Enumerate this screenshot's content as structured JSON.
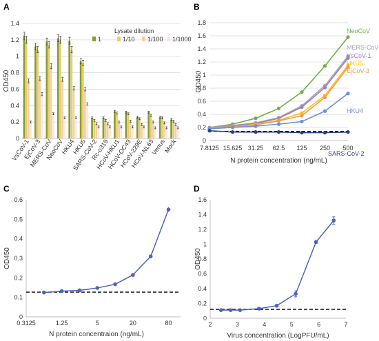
{
  "panels": {
    "a": {
      "label": "A"
    },
    "b": {
      "label": "B"
    },
    "c": {
      "label": "C"
    },
    "d": {
      "label": "D"
    }
  },
  "chart_data": [
    {
      "id": "A",
      "type": "bar",
      "title": "",
      "xlabel": "",
      "ylabel": "OD450",
      "ylim": [
        0,
        1.4
      ],
      "yticks": [
        "0",
        "0.2",
        "0.4",
        "0.6",
        "0.8",
        "1",
        "1.2",
        "1.4"
      ],
      "legend_title": "Lysate dilution",
      "legend_position": "top-right",
      "categories": [
        "VsCoV-1",
        "EjCoV-3",
        "MERS-CoV",
        "NeoCoV",
        "HKU4",
        "HKU5",
        "SARS-CoV-2",
        "Rc-o319",
        "HCoV-HKU1",
        "HCoV-OC43",
        "HCoV-229E",
        "HCoV-NL63",
        "Venus",
        "Mock"
      ],
      "series": [
        {
          "name": "1",
          "color": "#8b9a2e",
          "values": [
            1.25,
            1.12,
            1.18,
            1.22,
            1.19,
            0.94,
            0.25,
            0.25,
            0.33,
            0.32,
            0.26,
            0.32,
            0.26,
            0.23
          ]
        },
        {
          "name": "1/10",
          "color": "#e2cf70",
          "values": [
            1.2,
            1.08,
            1.14,
            1.2,
            1.08,
            0.92,
            0.22,
            0.22,
            0.31,
            0.3,
            0.24,
            0.28,
            0.25,
            0.21
          ]
        },
        {
          "name": "1/100",
          "color": "#f5cfa9",
          "values": [
            0.7,
            0.73,
            0.88,
            0.72,
            0.61,
            0.6,
            0.18,
            0.18,
            0.2,
            0.21,
            0.17,
            0.2,
            0.19,
            0.17
          ]
        },
        {
          "name": "1/1000",
          "color": "#fbe7dc",
          "values": [
            0.2,
            0.54,
            0.3,
            0.25,
            0.25,
            0.42,
            0.14,
            0.14,
            0.14,
            0.14,
            0.14,
            0.13,
            0.13,
            0.13
          ]
        }
      ]
    },
    {
      "id": "B",
      "type": "line",
      "title": "",
      "xlabel": "N protein concentration (ng/mL)",
      "ylabel": "OD450",
      "ylim": [
        0,
        1.8
      ],
      "yticks": [
        "0",
        "0.2",
        "0.4",
        "0.6",
        "0.8",
        "1",
        "1.2",
        "1.4",
        "1.6",
        "1.8"
      ],
      "categories": [
        "7.8125",
        "15.625",
        "31.25",
        "62.5",
        "125",
        "250",
        "500"
      ],
      "series": [
        {
          "name": "NeoCoV",
          "color": "#70ad47",
          "values": [
            0.2,
            0.25,
            0.34,
            0.49,
            0.74,
            1.14,
            1.58
          ]
        },
        {
          "name": "MERS-CoV",
          "color": "#a5a5a5",
          "values": [
            0.2,
            0.23,
            0.27,
            0.35,
            0.53,
            0.84,
            1.29
          ]
        },
        {
          "name": "VsCoV-1",
          "color": "#9e7ac9",
          "values": [
            0.19,
            0.22,
            0.26,
            0.34,
            0.51,
            0.81,
            1.26
          ]
        },
        {
          "name": "HKU5",
          "color": "#ffc000",
          "values": [
            0.19,
            0.21,
            0.25,
            0.31,
            0.42,
            0.69,
            1.15
          ]
        },
        {
          "name": "EjCoV-3",
          "color": "#ed9a5b",
          "values": [
            0.19,
            0.21,
            0.24,
            0.3,
            0.38,
            0.66,
            1.12
          ]
        },
        {
          "name": "HKU4",
          "color": "#6f8fd8",
          "values": [
            0.18,
            0.2,
            0.22,
            0.25,
            0.29,
            0.45,
            0.72
          ]
        },
        {
          "name": "SARS-CoV-2",
          "color": "#2f3e7b",
          "values": [
            0.15,
            0.13,
            0.13,
            0.13,
            0.12,
            0.12,
            0.13
          ]
        }
      ],
      "cutoff": 0.14
    },
    {
      "id": "C",
      "type": "line",
      "title": "",
      "xlabel": "N protein concentraion (ng/mL)",
      "ylabel": "OD450",
      "ylim": [
        0,
        0.6
      ],
      "yticks": [
        "0",
        "0.1",
        "0.2",
        "0.3",
        "0.4",
        "0.5",
        "0.6"
      ],
      "xticks": [
        "0.3125",
        "1.25",
        "5",
        "20",
        "80"
      ],
      "x_log2": [
        -1.678,
        0.322,
        2.322,
        4.322,
        6.322
      ],
      "x": [
        0.625,
        1.25,
        2.5,
        5,
        10,
        20,
        40,
        80
      ],
      "values": [
        0.125,
        0.132,
        0.136,
        0.148,
        0.167,
        0.215,
        0.31,
        0.55
      ],
      "errors": [
        0.004,
        0.005,
        0.004,
        0.005,
        0.006,
        0.005,
        0.006,
        0.012
      ],
      "cutoff": 0.127,
      "color": "#4f63b8"
    },
    {
      "id": "D",
      "type": "line",
      "title": "",
      "xlabel": "Virus concentration (LogPFU/mL)",
      "ylabel": "OD450",
      "ylim": [
        0,
        1.6
      ],
      "yticks": [
        "0",
        "0.2",
        "0.4",
        "0.6",
        "0.8",
        "1",
        "1.2",
        "1.4",
        "1.6"
      ],
      "xlim": [
        2,
        7
      ],
      "xticks": [
        "2",
        "3",
        "4",
        "5",
        "6",
        "7"
      ],
      "x": [
        2.4,
        2.75,
        3.1,
        3.8,
        4.45,
        5.15,
        5.9,
        6.55
      ],
      "values": [
        0.11,
        0.11,
        0.11,
        0.13,
        0.17,
        0.33,
        1.03,
        1.32
      ],
      "errors": [
        0.005,
        0.005,
        0.005,
        0.006,
        0.008,
        0.04,
        0.02,
        0.05
      ],
      "cutoff": 0.12,
      "color": "#4f63b8"
    }
  ]
}
